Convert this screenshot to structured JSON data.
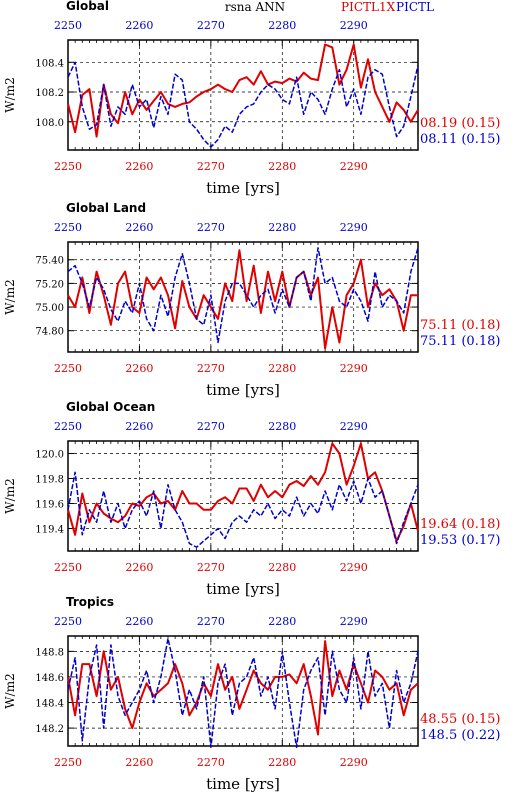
{
  "header": {
    "center_title": "rsna ANN",
    "series1_label": "PICTL1X",
    "series2_label": "PICTL",
    "series1_color": "#e00000",
    "series2_color": "#0000cc"
  },
  "chart_data": [
    {
      "type": "line",
      "title": "Global",
      "ylabel": "W/m2",
      "xlabel": "time [yrs]",
      "x_start": 2250,
      "x_end": 2299,
      "xlim": [
        2250,
        2299
      ],
      "ylim": [
        107.81,
        108.55
      ],
      "yticks": [
        "108.0",
        "108.2",
        "108.4"
      ],
      "xticks_bottom": [
        "2250",
        "2260",
        "2270",
        "2280",
        "2290"
      ],
      "xticks_top": [
        "2250",
        "2260",
        "2270",
        "2280",
        "2290"
      ],
      "grid": true,
      "stats": [
        "08.19 (0.15)",
        "08.11 (0.15)"
      ],
      "series": [
        {
          "name": "PICTL1X",
          "color": "#e00000",
          "values": [
            108.12,
            107.93,
            108.18,
            108.22,
            107.9,
            108.25,
            108.05,
            107.99,
            108.2,
            108.05,
            108.15,
            108.08,
            108.14,
            108.2,
            108.12,
            108.1,
            108.12,
            108.13,
            108.17,
            108.2,
            108.22,
            108.25,
            108.22,
            108.2,
            108.28,
            108.3,
            108.25,
            108.34,
            108.25,
            108.27,
            108.26,
            108.29,
            108.27,
            108.33,
            108.29,
            108.28,
            108.52,
            108.5,
            108.25,
            108.35,
            108.52,
            108.23,
            108.42,
            108.2,
            108.1,
            108.0,
            108.13,
            108.08,
            108.0,
            108.08
          ]
        },
        {
          "name": "PICTL",
          "color": "#0000cc",
          "values": [
            108.3,
            108.4,
            108.1,
            107.95,
            107.98,
            108.25,
            107.97,
            108.1,
            108.05,
            108.25,
            108.1,
            108.15,
            107.96,
            108.17,
            108.05,
            108.32,
            108.28,
            108.0,
            107.95,
            107.88,
            107.83,
            107.88,
            107.97,
            107.93,
            108.05,
            108.1,
            108.12,
            108.2,
            108.25,
            108.22,
            108.15,
            108.12,
            108.3,
            108.05,
            108.2,
            108.15,
            108.05,
            108.22,
            108.35,
            108.1,
            108.22,
            108.05,
            108.3,
            108.35,
            108.32,
            108.1,
            107.9,
            107.97,
            108.17,
            108.38
          ]
        }
      ]
    },
    {
      "type": "line",
      "title": "Global Land",
      "ylabel": "W/m2",
      "xlabel": "time [yrs]",
      "x_start": 2250,
      "x_end": 2299,
      "xlim": [
        2250,
        2299
      ],
      "ylim": [
        74.62,
        75.55
      ],
      "yticks": [
        "74.80",
        "75.00",
        "75.20",
        "75.40"
      ],
      "xticks_bottom": [
        "2250",
        "2260",
        "2270",
        "2280",
        "2290"
      ],
      "xticks_top": [
        "2250",
        "2260",
        "2270",
        "2280",
        "2290"
      ],
      "grid": true,
      "stats": [
        "75.11 (0.18)",
        "75.11 (0.18)"
      ],
      "series": [
        {
          "name": "PICTL1X",
          "color": "#e00000",
          "values": [
            75.1,
            75.0,
            75.25,
            74.95,
            75.3,
            75.1,
            74.85,
            75.2,
            75.3,
            75.0,
            74.95,
            75.25,
            75.15,
            75.25,
            75.1,
            74.82,
            75.22,
            75.0,
            74.9,
            75.1,
            75.0,
            74.9,
            75.2,
            75.05,
            75.48,
            75.05,
            75.35,
            74.95,
            75.3,
            75.05,
            75.3,
            75.0,
            75.25,
            75.3,
            75.1,
            75.25,
            74.65,
            75.0,
            74.7,
            75.1,
            75.2,
            75.4,
            75.0,
            75.2,
            75.1,
            75.15,
            75.05,
            74.8,
            75.1,
            75.1
          ]
        },
        {
          "name": "PICTL",
          "color": "#0000cc",
          "values": [
            75.3,
            75.35,
            75.2,
            75.0,
            75.25,
            75.15,
            74.98,
            74.88,
            75.05,
            74.95,
            75.2,
            74.9,
            74.8,
            75.1,
            74.92,
            75.25,
            75.45,
            75.2,
            74.9,
            74.85,
            75.1,
            74.7,
            75.05,
            75.2,
            75.2,
            75.1,
            75.0,
            75.1,
            75.15,
            74.95,
            75.15,
            75.0,
            75.25,
            75.3,
            75.05,
            75.5,
            75.2,
            75.25,
            75.05,
            75.0,
            75.15,
            75.05,
            74.88,
            75.3,
            75.0,
            75.1,
            75.05,
            74.95,
            75.3,
            75.5
          ]
        }
      ]
    },
    {
      "type": "line",
      "title": "Global Ocean",
      "ylabel": "W/m2",
      "xlabel": "time [yrs]",
      "x_start": 2250,
      "x_end": 2299,
      "xlim": [
        2250,
        2299
      ],
      "ylim": [
        119.22,
        120.1
      ],
      "yticks": [
        "119.4",
        "119.6",
        "119.8",
        "120.0"
      ],
      "xticks_bottom": [
        "2250",
        "2260",
        "2270",
        "2280",
        "2290"
      ],
      "xticks_top": [
        "2250",
        "2260",
        "2270",
        "2280",
        "2290"
      ],
      "grid": true,
      "stats": [
        "19.64 (0.18)",
        "19.53 (0.17)"
      ],
      "series": [
        {
          "name": "PICTL1X",
          "color": "#e00000",
          "values": [
            119.55,
            119.35,
            119.68,
            119.45,
            119.6,
            119.52,
            119.48,
            119.45,
            119.5,
            119.6,
            119.58,
            119.65,
            119.68,
            119.6,
            119.62,
            119.55,
            119.7,
            119.6,
            119.6,
            119.55,
            119.55,
            119.62,
            119.65,
            119.6,
            119.72,
            119.72,
            119.62,
            119.75,
            119.65,
            119.7,
            119.65,
            119.75,
            119.78,
            119.74,
            119.82,
            119.75,
            119.85,
            120.08,
            120.0,
            119.75,
            119.9,
            120.08,
            119.8,
            119.85,
            119.7,
            119.5,
            119.3,
            119.42,
            119.6,
            119.38
          ]
        },
        {
          "name": "PICTL",
          "color": "#0000cc",
          "values": [
            119.55,
            119.85,
            119.35,
            119.55,
            119.45,
            119.7,
            119.45,
            119.6,
            119.4,
            119.55,
            119.62,
            119.5,
            119.7,
            119.4,
            119.75,
            119.55,
            119.45,
            119.28,
            119.25,
            119.3,
            119.35,
            119.4,
            119.32,
            119.45,
            119.5,
            119.45,
            119.55,
            119.5,
            119.6,
            119.48,
            119.55,
            119.5,
            119.65,
            119.5,
            119.6,
            119.52,
            119.7,
            119.55,
            119.75,
            119.62,
            119.78,
            119.6,
            119.8,
            119.65,
            119.7,
            119.5,
            119.28,
            119.45,
            119.6,
            119.75
          ]
        }
      ]
    },
    {
      "type": "line",
      "title": "Tropics",
      "ylabel": "W/m2",
      "xlabel": "time [yrs]",
      "x_start": 2250,
      "x_end": 2299,
      "xlim": [
        2250,
        2299
      ],
      "ylim": [
        148.06,
        148.92
      ],
      "yticks": [
        "148.2",
        "148.4",
        "148.6",
        "148.8"
      ],
      "xticks_bottom": [
        "2250",
        "2260",
        "2270",
        "2280",
        "2290"
      ],
      "xticks_top": [
        "2250",
        "2260",
        "2270",
        "2280",
        "2290"
      ],
      "grid": true,
      "stats": [
        "48.55 (0.15)",
        "148.5 (0.22)"
      ],
      "series": [
        {
          "name": "PICTL1X",
          "color": "#e00000",
          "values": [
            148.6,
            148.3,
            148.7,
            148.7,
            148.45,
            148.8,
            148.5,
            148.6,
            148.35,
            148.2,
            148.4,
            148.55,
            148.45,
            148.5,
            148.55,
            148.7,
            148.55,
            148.3,
            148.4,
            148.55,
            148.45,
            148.7,
            148.5,
            148.6,
            148.35,
            148.5,
            148.65,
            148.55,
            148.5,
            148.6,
            148.6,
            148.62,
            148.55,
            148.7,
            148.45,
            148.15,
            148.88,
            148.45,
            148.65,
            148.5,
            148.7,
            148.55,
            148.4,
            148.65,
            148.6,
            148.5,
            148.55,
            148.3,
            148.5,
            148.55
          ]
        },
        {
          "name": "PICTL",
          "color": "#0000cc",
          "values": [
            148.5,
            148.75,
            148.1,
            148.6,
            148.85,
            148.2,
            148.85,
            148.45,
            148.3,
            148.4,
            148.5,
            148.65,
            148.4,
            148.6,
            148.9,
            148.65,
            148.3,
            148.5,
            148.35,
            148.6,
            148.05,
            148.55,
            148.7,
            148.3,
            148.55,
            148.6,
            148.75,
            148.45,
            148.6,
            148.35,
            148.8,
            148.4,
            148.05,
            148.5,
            148.65,
            148.75,
            148.3,
            148.8,
            148.5,
            148.4,
            148.75,
            148.35,
            148.8,
            148.45,
            148.55,
            148.2,
            148.65,
            148.4,
            148.55,
            148.8
          ]
        }
      ]
    }
  ]
}
